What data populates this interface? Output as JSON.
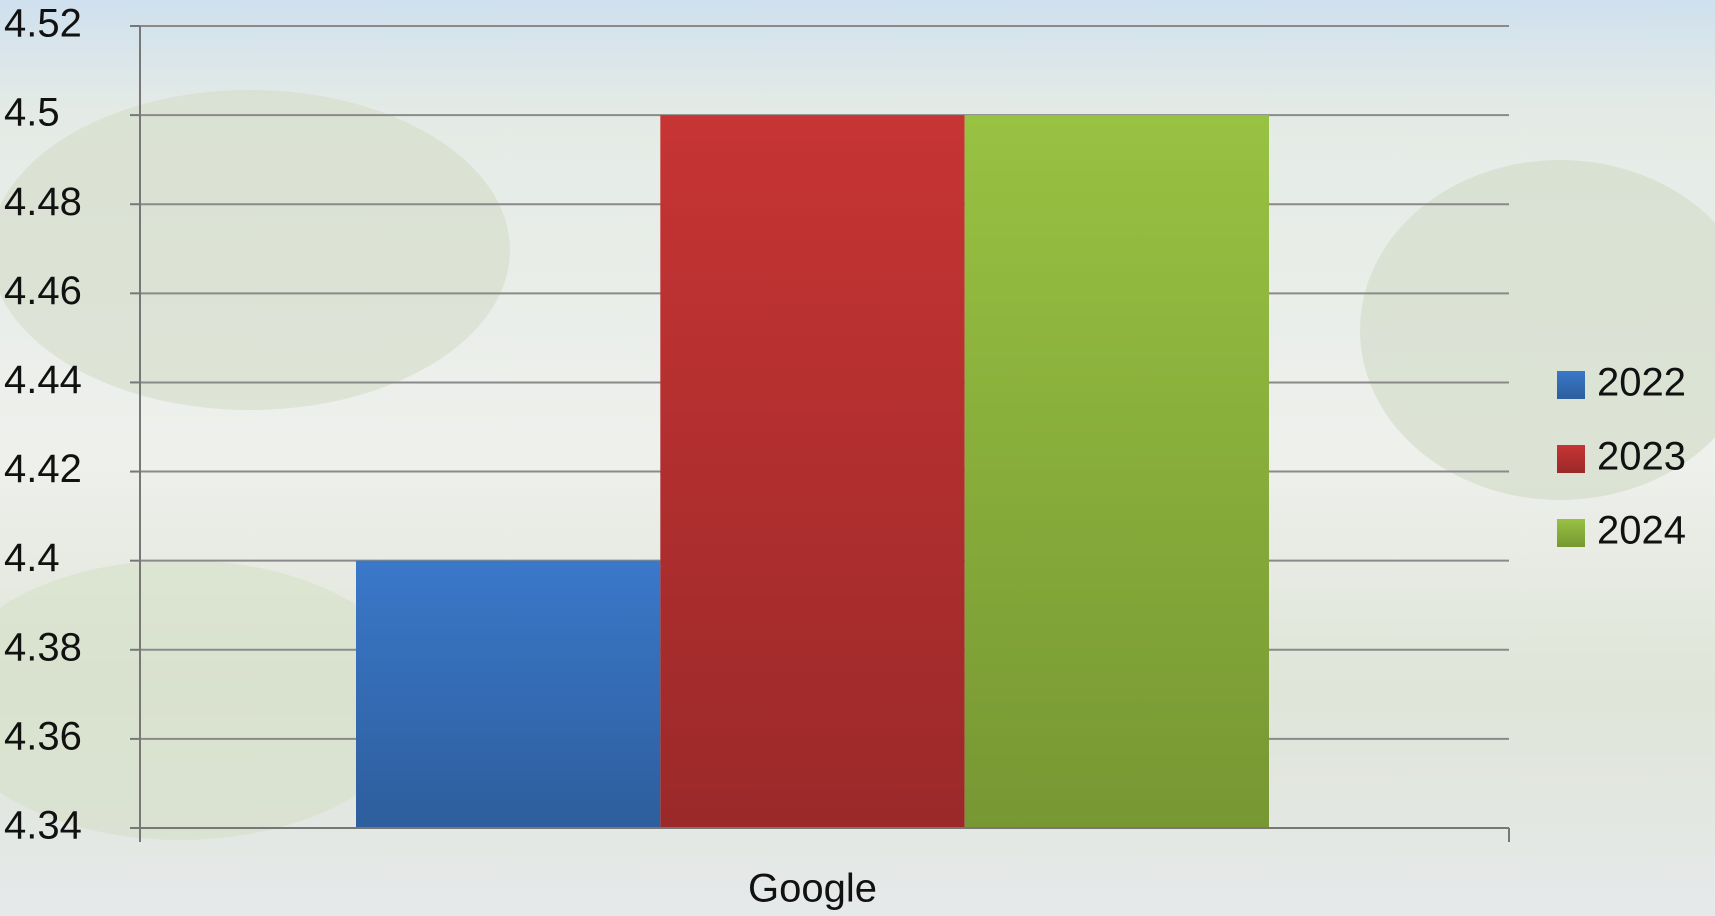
{
  "chart_data": {
    "type": "bar",
    "categories": [
      "Google"
    ],
    "series": [
      {
        "name": "2022",
        "color": "#3a78c9",
        "values": [
          4.4
        ]
      },
      {
        "name": "2023",
        "color": "#c73434",
        "values": [
          4.5
        ]
      },
      {
        "name": "2024",
        "color": "#98c242",
        "values": [
          4.5
        ]
      }
    ],
    "ylim": [
      4.34,
      4.52
    ],
    "yticks": [
      4.34,
      4.36,
      4.38,
      4.4,
      4.42,
      4.44,
      4.46,
      4.48,
      4.5,
      4.52
    ],
    "grid": true,
    "legend": "right"
  }
}
